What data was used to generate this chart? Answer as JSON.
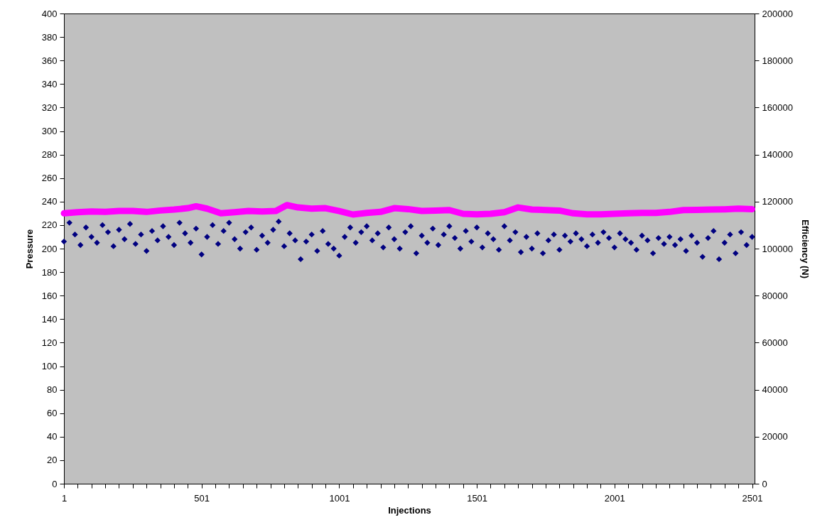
{
  "chart_data": {
    "type": "scatter",
    "xlabel": "Injections",
    "ylabel": "Pressure",
    "y2label": "Efficiency (N)",
    "xlim": [
      1,
      2510
    ],
    "xticks": [
      1,
      {
        "value": 51,
        "label": null
      },
      {
        "value": 101,
        "label": null
      },
      {
        "value": 151,
        "label": null
      },
      {
        "value": 201,
        "label": null
      },
      {
        "value": 251,
        "label": null
      },
      {
        "value": 301,
        "label": null
      },
      {
        "value": 351,
        "label": null
      },
      {
        "value": 401,
        "label": null
      },
      {
        "value": 451,
        "label": null
      },
      501,
      {
        "value": 551,
        "label": null
      },
      {
        "value": 601,
        "label": null
      },
      {
        "value": 651,
        "label": null
      },
      {
        "value": 701,
        "label": null
      },
      {
        "value": 751,
        "label": null
      },
      {
        "value": 801,
        "label": null
      },
      {
        "value": 851,
        "label": null
      },
      {
        "value": 901,
        "label": null
      },
      {
        "value": 951,
        "label": null
      },
      1001,
      {
        "value": 1051,
        "label": null
      },
      {
        "value": 1101,
        "label": null
      },
      {
        "value": 1151,
        "label": null
      },
      {
        "value": 1201,
        "label": null
      },
      {
        "value": 1251,
        "label": null
      },
      {
        "value": 1301,
        "label": null
      },
      {
        "value": 1351,
        "label": null
      },
      {
        "value": 1401,
        "label": null
      },
      {
        "value": 1451,
        "label": null
      },
      1501,
      {
        "value": 1551,
        "label": null
      },
      {
        "value": 1601,
        "label": null
      },
      {
        "value": 1651,
        "label": null
      },
      {
        "value": 1701,
        "label": null
      },
      {
        "value": 1751,
        "label": null
      },
      {
        "value": 1801,
        "label": null
      },
      {
        "value": 1851,
        "label": null
      },
      {
        "value": 1901,
        "label": null
      },
      {
        "value": 1951,
        "label": null
      },
      2001,
      {
        "value": 2051,
        "label": null
      },
      {
        "value": 2101,
        "label": null
      },
      {
        "value": 2151,
        "label": null
      },
      {
        "value": 2201,
        "label": null
      },
      {
        "value": 2251,
        "label": null
      },
      {
        "value": 2301,
        "label": null
      },
      {
        "value": 2351,
        "label": null
      },
      {
        "value": 2401,
        "label": null
      },
      {
        "value": 2451,
        "label": null
      },
      2501
    ],
    "ylim": [
      0,
      400
    ],
    "yticks": [
      0,
      20,
      40,
      60,
      80,
      100,
      120,
      140,
      160,
      180,
      200,
      220,
      240,
      260,
      280,
      300,
      320,
      340,
      360,
      380,
      400
    ],
    "y2lim": [
      0,
      200000
    ],
    "y2ticks": [
      0,
      20000,
      40000,
      60000,
      80000,
      100000,
      120000,
      140000,
      160000,
      180000,
      200000
    ],
    "grid": false,
    "series": [
      {
        "type": "scatter",
        "color": "#000080",
        "marker": "diamond",
        "x": [
          1,
          21,
          41,
          61,
          81,
          101,
          121,
          141,
          161,
          181,
          201,
          221,
          241,
          261,
          281,
          301,
          321,
          341,
          361,
          381,
          401,
          421,
          441,
          461,
          481,
          501,
          521,
          541,
          561,
          581,
          601,
          621,
          641,
          661,
          681,
          701,
          721,
          741,
          761,
          781,
          801,
          821,
          841,
          861,
          881,
          901,
          921,
          941,
          961,
          981,
          1001,
          1021,
          1041,
          1061,
          1081,
          1101,
          1121,
          1141,
          1161,
          1181,
          1201,
          1221,
          1241,
          1261,
          1281,
          1301,
          1321,
          1341,
          1361,
          1381,
          1401,
          1421,
          1441,
          1461,
          1481,
          1501,
          1521,
          1541,
          1561,
          1581,
          1601,
          1621,
          1641,
          1661,
          1681,
          1701,
          1721,
          1741,
          1761,
          1781,
          1801,
          1821,
          1841,
          1861,
          1881,
          1901,
          1921,
          1941,
          1961,
          1981,
          2001,
          2021,
          2041,
          2061,
          2081,
          2101,
          2121,
          2141,
          2161,
          2181,
          2201,
          2221,
          2241,
          2261,
          2281,
          2301,
          2321,
          2341,
          2361,
          2381,
          2401,
          2421,
          2441,
          2461,
          2481,
          2501
        ],
        "values": [
          206,
          222,
          212,
          203,
          218,
          210,
          205,
          220,
          214,
          202,
          216,
          208,
          221,
          204,
          212,
          198,
          215,
          207,
          219,
          210,
          203,
          222,
          213,
          205,
          217,
          195,
          210,
          220,
          204,
          215,
          222,
          208,
          200,
          214,
          218,
          199,
          211,
          205,
          216,
          223,
          202,
          213,
          207,
          191,
          206,
          212,
          198,
          215,
          204,
          200,
          194,
          210,
          218,
          205,
          214,
          219,
          207,
          213,
          201,
          218,
          208,
          200,
          214,
          219,
          196,
          211,
          205,
          217,
          203,
          212,
          219,
          209,
          200,
          215,
          206,
          218,
          201,
          213,
          208,
          199,
          219,
          207,
          214,
          197,
          210,
          200,
          213,
          196,
          207,
          212,
          199,
          211,
          206,
          213,
          208,
          202,
          212,
          205,
          214,
          209,
          201,
          213,
          208,
          205,
          199,
          211,
          207,
          196,
          209,
          204,
          210,
          203,
          208,
          198,
          211,
          205,
          193,
          209,
          215,
          191,
          205,
          212,
          196,
          214,
          203,
          210
        ]
      },
      {
        "type": "line",
        "axis": "y2",
        "color": "#ff00ff",
        "x": [
          1,
          51,
          101,
          151,
          201,
          251,
          301,
          351,
          401,
          451,
          481,
          521,
          571,
          621,
          671,
          721,
          771,
          811,
          851,
          901,
          951,
          1001,
          1051,
          1101,
          1151,
          1201,
          1251,
          1301,
          1351,
          1401,
          1451,
          1501,
          1551,
          1601,
          1651,
          1701,
          1751,
          1801,
          1851,
          1901,
          1951,
          2001,
          2051,
          2101,
          2151,
          2201,
          2251,
          2301,
          2351,
          2401,
          2451,
          2501
        ],
        "values": [
          115000,
          115500,
          115800,
          115600,
          116000,
          116000,
          115600,
          116200,
          116600,
          117200,
          118000,
          117000,
          115000,
          115500,
          116000,
          115800,
          116000,
          118500,
          117500,
          117000,
          117200,
          116000,
          114500,
          115200,
          115600,
          117200,
          116800,
          116000,
          116200,
          116400,
          114800,
          114600,
          114800,
          115500,
          117500,
          116600,
          116400,
          116200,
          115000,
          114600,
          114600,
          114800,
          115000,
          115200,
          115200,
          115600,
          116400,
          116500,
          116600,
          116700,
          117000,
          116800
        ]
      }
    ]
  }
}
